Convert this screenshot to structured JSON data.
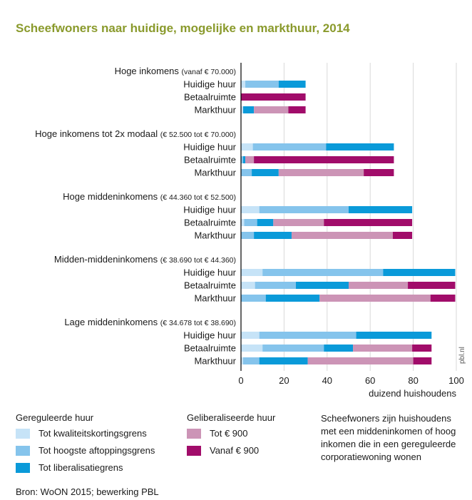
{
  "title": "Scheefwoners naar huidige, mogelijke en markthuur, 2014",
  "source": "Bron: WoON 2015; bewerking PBL",
  "watermark": "pbl.nl",
  "note": "Scheefwoners zijn huishoudens met een middeninkomen of hoog inkomen die in een gereguleerde corporatiewoning wonen",
  "legend": {
    "group1_title": "Gereguleerde huur",
    "group2_title": "Geliberaliseerde huur"
  },
  "chart_data": {
    "type": "bar",
    "orientation": "horizontal",
    "stacked": true,
    "xlabel": "duizend huishoudens",
    "xlim": [
      0,
      100
    ],
    "xticks": [
      0,
      20,
      40,
      60,
      80,
      100
    ],
    "grid": true,
    "series": [
      {
        "name": "Tot kwaliteitskortingsgrens",
        "color": "#c6e3f7"
      },
      {
        "name": "Tot hoogste aftoppingsgrens",
        "color": "#85c4ec"
      },
      {
        "name": "Tot liberalisatiegrens",
        "color": "#0a9ad9"
      },
      {
        "name": "Tot € 900",
        "color": "#cc94b6"
      },
      {
        "name": "Vanaf € 900",
        "color": "#a10c6a"
      }
    ],
    "groups": [
      {
        "title": "Hoge inkomens",
        "subtitle": "(vanaf € 70.000)",
        "rows": [
          {
            "label": "Huidige huur",
            "values": [
              2,
              15.5,
              12.5,
              0,
              0
            ]
          },
          {
            "label": "Betaalruimte",
            "values": [
              0,
              0,
              0,
              0,
              30
            ]
          },
          {
            "label": "Markthuur",
            "values": [
              1,
              0,
              5,
              16,
              8
            ]
          }
        ]
      },
      {
        "title": "Hoge inkomens tot 2x modaal",
        "subtitle": "(€ 52.500 tot € 70.000)",
        "rows": [
          {
            "label": "Huidige huur",
            "values": [
              5.5,
              34,
              31.5,
              0,
              0
            ]
          },
          {
            "label": "Betaalruimte",
            "values": [
              0,
              1,
              1,
              4,
              65
            ]
          },
          {
            "label": "Markthuur",
            "values": [
              0,
              5,
              12.5,
              39.5,
              14
            ]
          }
        ]
      },
      {
        "title": "Hoge middeninkomens",
        "subtitle": "(€ 44.360 tot € 52.500)",
        "rows": [
          {
            "label": "Huidige huur",
            "values": [
              8.5,
              41.5,
              29.5,
              0,
              0
            ]
          },
          {
            "label": "Betaalruimte",
            "values": [
              1.5,
              6,
              7.5,
              23.5,
              41
            ]
          },
          {
            "label": "Markthuur",
            "values": [
              0,
              6,
              17.5,
              47,
              9
            ]
          }
        ]
      },
      {
        "title": "Midden-middeninkomens",
        "subtitle": "(€ 38.690 tot € 44.360)",
        "rows": [
          {
            "label": "Huidige huur",
            "values": [
              10,
              56,
              33.5,
              0,
              0
            ]
          },
          {
            "label": "Betaalruimte",
            "values": [
              6.5,
              19,
              24.5,
              27.5,
              22
            ]
          },
          {
            "label": "Markthuur",
            "values": [
              0,
              11.5,
              25,
              51.5,
              11.5
            ]
          }
        ]
      },
      {
        "title": "Lage middeninkomens",
        "subtitle": "(€ 34.678 tot € 38.690)",
        "rows": [
          {
            "label": "Huidige huur",
            "values": [
              8.5,
              45,
              35,
              0,
              0
            ]
          },
          {
            "label": "Betaalruimte",
            "values": [
              10,
              28.5,
              13.5,
              27.5,
              9
            ]
          },
          {
            "label": "Markthuur",
            "values": [
              1,
              7.5,
              22.5,
              49,
              8.5
            ]
          }
        ]
      }
    ]
  }
}
